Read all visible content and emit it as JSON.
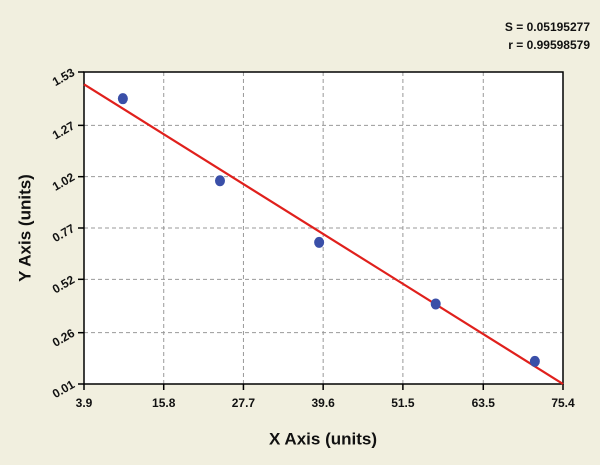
{
  "chart_data": {
    "type": "scatter",
    "annotations": [
      "S = 0.05195277",
      "r = 0.99598579"
    ],
    "x_label": "X Axis (units)",
    "y_label": "Y Axis (units)",
    "x": [
      9.7,
      24.2,
      39.0,
      56.4,
      71.2
    ],
    "values": [
      1.4,
      1.0,
      0.7,
      0.4,
      0.12
    ],
    "color": "#3a4fa8",
    "fit_line": {
      "x": [
        3.9,
        75.4
      ],
      "y": [
        1.47,
        0.01
      ],
      "color": "#e0201c"
    },
    "xlim": [
      3.9,
      75.4
    ],
    "xticks": [
      3.9,
      15.8,
      27.7,
      39.6,
      51.5,
      63.5,
      75.4
    ],
    "ylim": [
      0.01,
      1.53
    ],
    "yticks": [
      0.01,
      0.26,
      0.52,
      0.77,
      1.02,
      1.27,
      1.53
    ],
    "grid": true
  }
}
